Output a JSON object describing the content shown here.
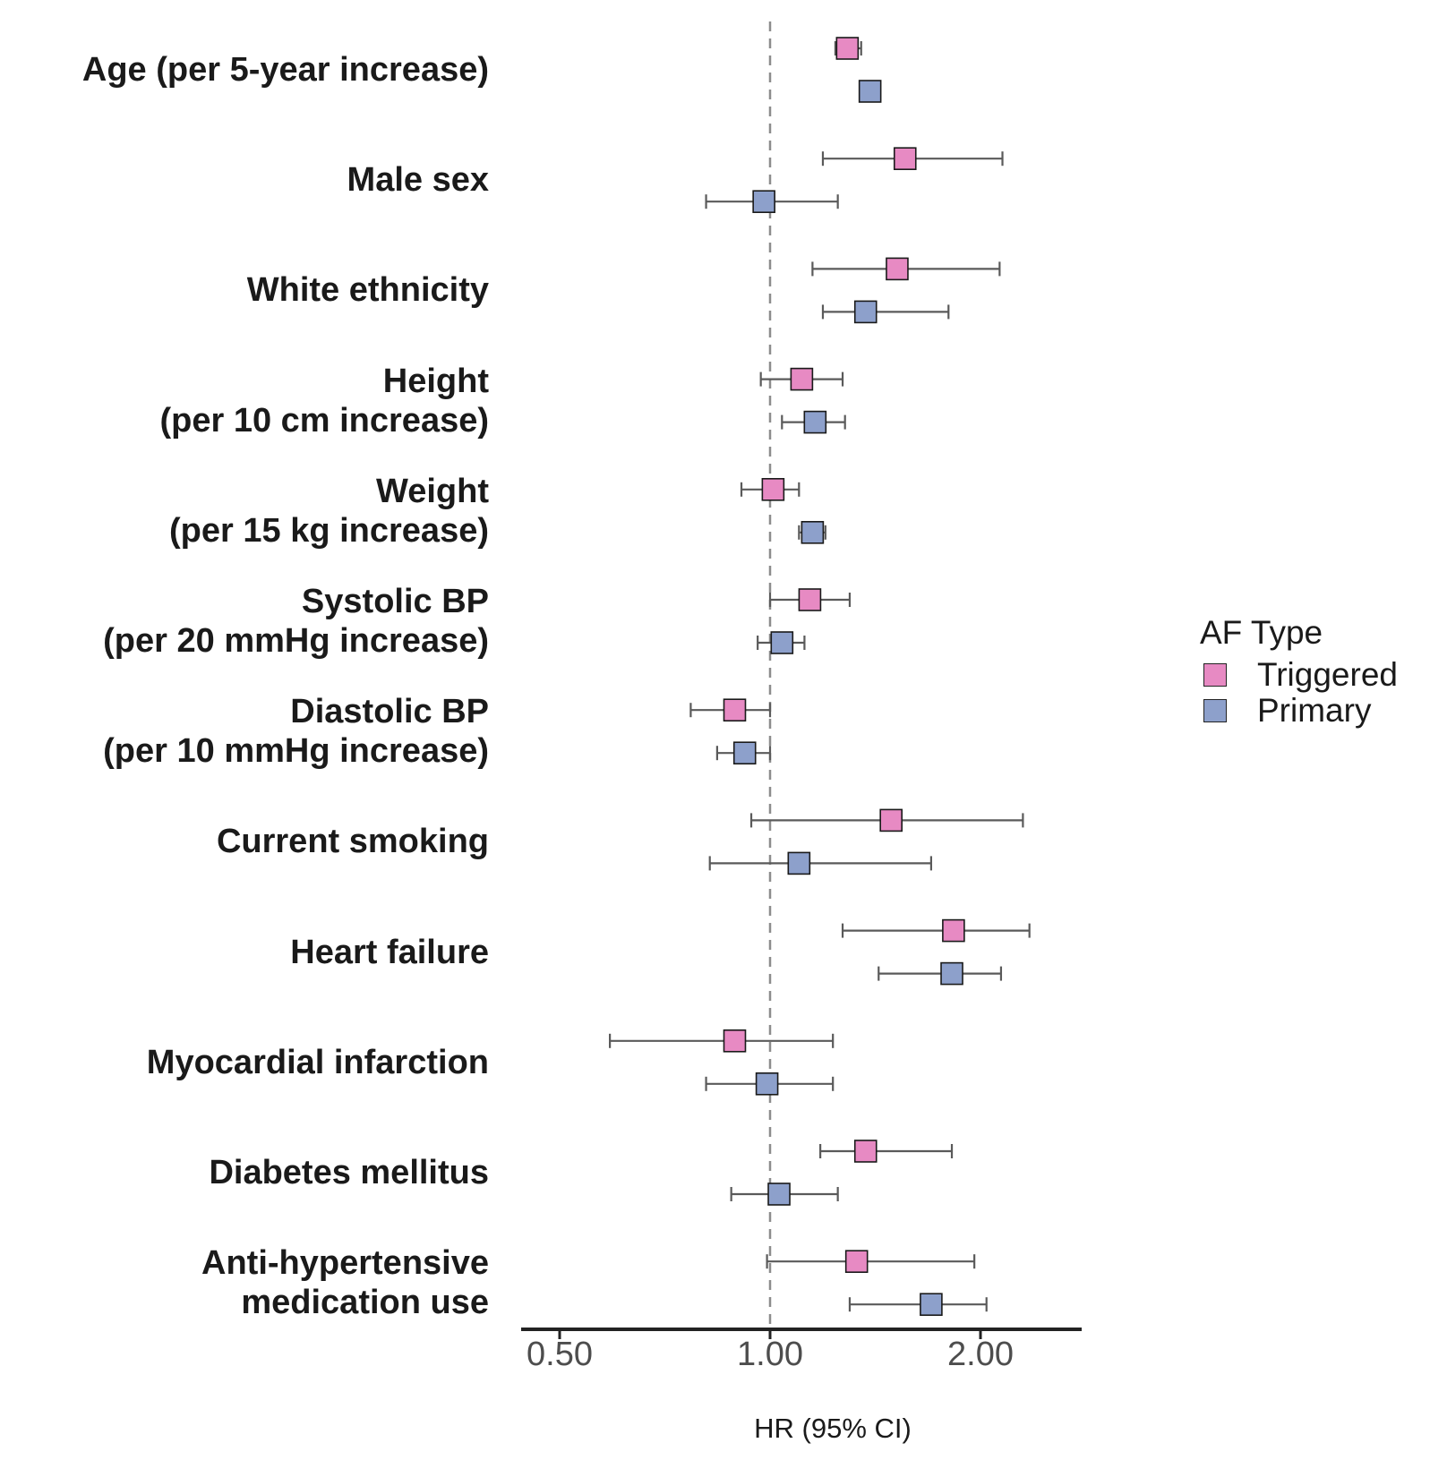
{
  "chart_data": {
    "type": "forest",
    "xlabel": "HR (95% CI)",
    "x_scale": "log",
    "xlim": [
      0.42,
      2.7
    ],
    "reference_line": 1.0,
    "x_ticks": [
      0.5,
      1.0,
      2.0
    ],
    "x_tick_labels": [
      "0.50",
      "1.00",
      "2.00"
    ],
    "legend": {
      "title": "AF Type",
      "placement": "right",
      "entries": [
        {
          "name": "Triggered",
          "color": "#e78ac3"
        },
        {
          "name": "Primary",
          "color": "#8da0cb"
        }
      ]
    },
    "rows": [
      {
        "label": [
          "Age (per 5-year increase)"
        ],
        "triggered": {
          "hr": 1.29,
          "lo": 1.24,
          "hi": 1.35
        },
        "primary": {
          "hr": 1.39,
          "lo": 1.36,
          "hi": 1.42
        }
      },
      {
        "label": [
          "Male sex"
        ],
        "triggered": {
          "hr": 1.56,
          "lo": 1.19,
          "hi": 2.15
        },
        "primary": {
          "hr": 0.98,
          "lo": 0.81,
          "hi": 1.25
        }
      },
      {
        "label": [
          "White ethnicity"
        ],
        "triggered": {
          "hr": 1.52,
          "lo": 1.15,
          "hi": 2.13
        },
        "primary": {
          "hr": 1.37,
          "lo": 1.19,
          "hi": 1.8
        }
      },
      {
        "label": [
          "Height ",
          "(per 10 cm increase)"
        ],
        "triggered": {
          "hr": 1.11,
          "lo": 0.97,
          "hi": 1.27
        },
        "primary": {
          "hr": 1.16,
          "lo": 1.04,
          "hi": 1.28
        }
      },
      {
        "label": [
          "Weight ",
          "(per 15 kg increase)"
        ],
        "triggered": {
          "hr": 1.01,
          "lo": 0.91,
          "hi": 1.1
        },
        "primary": {
          "hr": 1.15,
          "lo": 1.1,
          "hi": 1.2
        }
      },
      {
        "label": [
          "Systolic BP ",
          "(per 20 mmHg increase)"
        ],
        "triggered": {
          "hr": 1.14,
          "lo": 1.0,
          "hi": 1.3
        },
        "primary": {
          "hr": 1.04,
          "lo": 0.96,
          "hi": 1.12
        }
      },
      {
        "label": [
          "Diastolic BP ",
          "(per 10 mmHg increase)"
        ],
        "triggered": {
          "hr": 0.89,
          "lo": 0.77,
          "hi": 1.0
        },
        "primary": {
          "hr": 0.92,
          "lo": 0.84,
          "hi": 1.0
        }
      },
      {
        "label": [
          "Current smoking"
        ],
        "triggered": {
          "hr": 1.49,
          "lo": 0.94,
          "hi": 2.3
        },
        "primary": {
          "hr": 1.1,
          "lo": 0.82,
          "hi": 1.7
        }
      },
      {
        "label": [
          "Heart failure"
        ],
        "triggered": {
          "hr": 1.83,
          "lo": 1.27,
          "hi": 2.35
        },
        "primary": {
          "hr": 1.82,
          "lo": 1.43,
          "hi": 2.14
        }
      },
      {
        "label": [
          "Myocardial infarction"
        ],
        "triggered": {
          "hr": 0.89,
          "lo": 0.59,
          "hi": 1.23
        },
        "primary": {
          "hr": 0.99,
          "lo": 0.81,
          "hi": 1.23
        }
      },
      {
        "label": [
          "Diabetes mellitus"
        ],
        "triggered": {
          "hr": 1.37,
          "lo": 1.18,
          "hi": 1.82
        },
        "primary": {
          "hr": 1.03,
          "lo": 0.88,
          "hi": 1.25
        }
      },
      {
        "label": [
          "Anti-hypertensive ",
          "medication use"
        ],
        "triggered": {
          "hr": 1.33,
          "lo": 0.99,
          "hi": 1.96
        },
        "primary": {
          "hr": 1.7,
          "lo": 1.3,
          "hi": 2.04
        }
      }
    ]
  }
}
